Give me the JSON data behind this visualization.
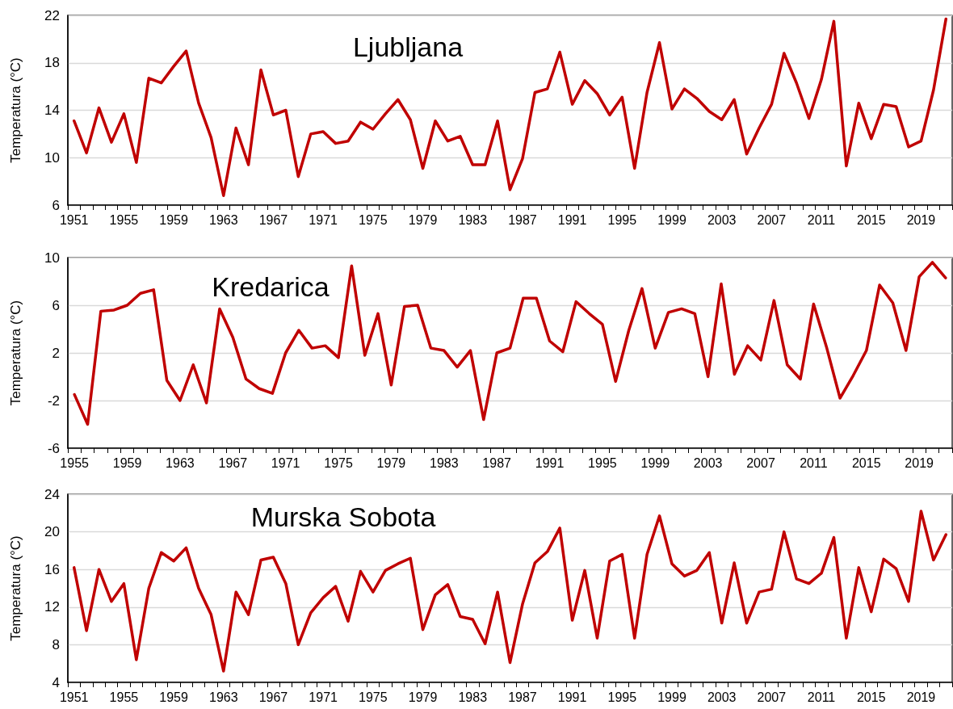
{
  "chart_data": [
    {
      "type": "line",
      "title": "Ljubljana",
      "ylabel": "Temperatura (°C)",
      "categories": [
        "1951",
        null,
        null,
        null,
        "1955",
        null,
        null,
        null,
        "1959",
        null,
        null,
        null,
        "1963",
        null,
        null,
        null,
        "1967",
        null,
        null,
        null,
        "1971",
        null,
        null,
        null,
        "1975",
        null,
        null,
        null,
        "1979",
        null,
        null,
        null,
        "1983",
        null,
        null,
        null,
        "1987",
        null,
        null,
        null,
        "1991",
        null,
        null,
        null,
        "1995",
        null,
        null,
        null,
        "1999",
        null,
        null,
        null,
        "2003",
        null,
        null,
        null,
        "2007",
        null,
        null,
        null,
        "2011",
        null,
        null,
        null,
        "2015",
        null,
        null,
        null,
        "2019",
        null,
        null
      ],
      "series": [
        {
          "color": "#c00000",
          "values": [
            13.1,
            10.4,
            14.2,
            11.3,
            13.7,
            9.6,
            16.7,
            16.3,
            17.7,
            19.0,
            14.6,
            11.7,
            6.8,
            12.5,
            9.4,
            17.4,
            13.6,
            14.0,
            8.4,
            12.0,
            12.2,
            11.2,
            11.4,
            13.0,
            12.4,
            13.7,
            14.9,
            13.2,
            9.1,
            13.1,
            11.4,
            11.8,
            9.4,
            9.4,
            13.1,
            7.3,
            9.9,
            15.5,
            15.8,
            18.9,
            14.5,
            16.5,
            15.4,
            13.6,
            15.1,
            9.1,
            15.5,
            19.7,
            14.1,
            15.8,
            15.0,
            13.9,
            13.2,
            14.9,
            10.3,
            12.5,
            14.5,
            18.8,
            16.3,
            13.3,
            16.6,
            21.5,
            9.3,
            14.6,
            11.6,
            14.5,
            14.3,
            10.9,
            11.4,
            15.7,
            21.7
          ]
        }
      ],
      "ylim": [
        6,
        22
      ],
      "yticks": [
        6,
        10,
        14,
        18,
        22
      ],
      "grid": "y",
      "marker": "none",
      "line_style": "solid"
    },
    {
      "type": "line",
      "title": "Kredarica",
      "ylabel": "Temperatura (°C)",
      "categories": [
        "1955",
        null,
        null,
        null,
        "1959",
        null,
        null,
        null,
        "1963",
        null,
        null,
        null,
        "1967",
        null,
        null,
        null,
        "1971",
        null,
        null,
        null,
        "1975",
        null,
        null,
        null,
        "1979",
        null,
        null,
        null,
        "1983",
        null,
        null,
        null,
        "1987",
        null,
        null,
        null,
        "1991",
        null,
        null,
        null,
        "1995",
        null,
        null,
        null,
        "1999",
        null,
        null,
        null,
        "2003",
        null,
        null,
        null,
        "2007",
        null,
        null,
        null,
        "2011",
        null,
        null,
        null,
        "2015",
        null,
        null,
        null,
        "2019",
        null,
        null
      ],
      "series": [
        {
          "color": "#c00000",
          "values": [
            -1.5,
            -4.0,
            5.5,
            5.6,
            6.0,
            7.0,
            7.3,
            -0.3,
            -2.0,
            1.0,
            -2.2,
            5.7,
            3.3,
            -0.2,
            -1.0,
            -1.4,
            2.0,
            3.9,
            2.4,
            2.6,
            1.6,
            9.3,
            1.8,
            5.3,
            -0.7,
            5.9,
            6.0,
            2.4,
            2.2,
            0.8,
            2.2,
            -3.6,
            2.0,
            2.4,
            6.6,
            6.6,
            3.0,
            2.1,
            6.3,
            5.3,
            4.4,
            -0.4,
            3.9,
            7.4,
            2.4,
            5.4,
            5.7,
            5.3,
            0.0,
            7.8,
            0.2,
            2.6,
            1.4,
            6.4,
            1.0,
            -0.2,
            6.1,
            2.4,
            -1.8,
            0.1,
            2.2,
            7.7,
            6.2,
            2.2,
            8.4,
            9.6,
            8.3
          ]
        }
      ],
      "ylim": [
        -6,
        10
      ],
      "yticks": [
        -6,
        -2,
        2,
        6,
        10
      ],
      "grid": "y",
      "marker": "none",
      "line_style": "solid"
    },
    {
      "type": "line",
      "title": "Murska Sobota",
      "ylabel": "Temperatura (°C)",
      "categories": [
        "1951",
        null,
        null,
        null,
        "1955",
        null,
        null,
        null,
        "1959",
        null,
        null,
        null,
        "1963",
        null,
        null,
        null,
        "1967",
        null,
        null,
        null,
        "1971",
        null,
        null,
        null,
        "1975",
        null,
        null,
        null,
        "1979",
        null,
        null,
        null,
        "1983",
        null,
        null,
        null,
        "1987",
        null,
        null,
        null,
        "1991",
        null,
        null,
        null,
        "1995",
        null,
        null,
        null,
        "1999",
        null,
        null,
        null,
        "2003",
        null,
        null,
        null,
        "2007",
        null,
        null,
        null,
        "2011",
        null,
        null,
        null,
        "2015",
        null,
        null,
        null,
        "2019",
        null,
        null
      ],
      "series": [
        {
          "color": "#c00000",
          "values": [
            16.2,
            9.5,
            16.0,
            12.6,
            14.5,
            6.4,
            14.0,
            17.8,
            16.9,
            18.3,
            14.0,
            11.2,
            5.2,
            13.6,
            11.2,
            17.0,
            17.3,
            14.5,
            8.0,
            11.4,
            13.0,
            14.2,
            10.5,
            15.8,
            13.6,
            15.9,
            16.6,
            17.2,
            9.6,
            13.3,
            14.4,
            11.0,
            10.7,
            8.1,
            13.6,
            6.1,
            12.3,
            16.7,
            17.9,
            20.4,
            10.6,
            15.9,
            8.7,
            16.9,
            17.6,
            8.7,
            17.6,
            21.7,
            16.6,
            15.3,
            15.9,
            17.8,
            10.3,
            16.7,
            10.3,
            13.6,
            13.9,
            20.0,
            15.0,
            14.5,
            15.6,
            19.4,
            8.7,
            16.2,
            11.5,
            17.1,
            16.1,
            12.6,
            22.2,
            17.0,
            19.7
          ]
        }
      ],
      "ylim": [
        4,
        24
      ],
      "yticks": [
        4,
        8,
        12,
        16,
        20,
        24
      ],
      "grid": "y",
      "marker": "none",
      "line_style": "solid"
    }
  ]
}
